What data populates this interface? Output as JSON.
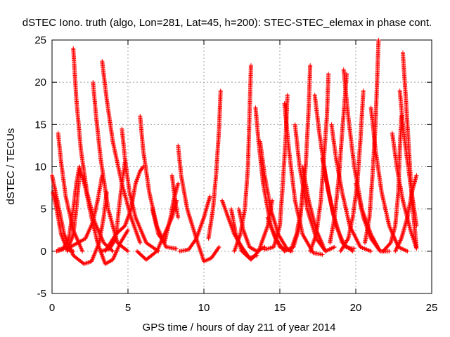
{
  "chart_data": {
    "type": "scatter",
    "title": "dSTEC Iono. truth (algo, Lon=281, Lat=45, h=200): STEC-STEC_elemax in phase cont.",
    "xlabel": "GPS time / hours of day 211 of year 2014",
    "ylabel": "dSTEC  / TECUs",
    "xlim": [
      0,
      25
    ],
    "ylim": [
      -5,
      25
    ],
    "xticks": [
      "0",
      "5",
      "10",
      "15",
      "20",
      "25"
    ],
    "yticks": [
      "-5",
      "0",
      "5",
      "10",
      "15",
      "20",
      "25"
    ],
    "grid": true,
    "marker": "+",
    "marker_color": "#ff0000",
    "series": [
      {
        "points": [
          [
            0,
            9
          ],
          [
            0.35,
            6
          ],
          [
            0.8,
            2
          ],
          [
            1.4,
            -0.5
          ],
          [
            2.1,
            -1.5
          ],
          [
            2.6,
            -1.2
          ],
          [
            3.1,
            1
          ],
          [
            3.4,
            4
          ],
          [
            3.6,
            7
          ]
        ]
      },
      {
        "points": [
          [
            0.05,
            7
          ],
          [
            0.3,
            5
          ],
          [
            0.6,
            2
          ],
          [
            1.0,
            0.2
          ],
          [
            1.4,
            0
          ]
        ]
      },
      {
        "points": [
          [
            0.4,
            14
          ],
          [
            0.6,
            10.5
          ],
          [
            0.9,
            6.5
          ],
          [
            1.4,
            2.5
          ],
          [
            2.0,
            0
          ]
        ]
      },
      {
        "points": [
          [
            0.3,
            0
          ],
          [
            0.7,
            0.2
          ],
          [
            1.1,
            1.5
          ],
          [
            1.4,
            5
          ],
          [
            1.6,
            8
          ],
          [
            1.8,
            10
          ]
        ]
      },
      {
        "points": [
          [
            1.0,
            0
          ],
          [
            1.4,
            2
          ],
          [
            1.6,
            5
          ],
          [
            1.75,
            8
          ],
          [
            1.8,
            10
          ]
        ]
      },
      {
        "points": [
          [
            1.4,
            24
          ],
          [
            1.6,
            18
          ],
          [
            1.9,
            12
          ],
          [
            2.3,
            7
          ],
          [
            2.8,
            3.5
          ],
          [
            3.4,
            1
          ],
          [
            4.0,
            0
          ]
        ]
      },
      {
        "points": [
          [
            0.4,
            0.2
          ],
          [
            1.2,
            0.5
          ],
          [
            2.2,
            1.5
          ],
          [
            2.7,
            3.5
          ],
          [
            3.0,
            6
          ],
          [
            3.3,
            9
          ]
        ]
      },
      {
        "points": [
          [
            2.7,
            20
          ],
          [
            2.9,
            16
          ],
          [
            3.2,
            11
          ],
          [
            3.7,
            5
          ],
          [
            4.3,
            1
          ],
          [
            5.0,
            0
          ]
        ]
      },
      {
        "points": [
          [
            3.3,
            22.5
          ],
          [
            3.6,
            18
          ],
          [
            4.0,
            13
          ],
          [
            4.6,
            8
          ],
          [
            5.2,
            4
          ],
          [
            5.8,
            1
          ]
        ]
      },
      {
        "points": [
          [
            1.8,
            10
          ],
          [
            2.2,
            7.5
          ],
          [
            2.6,
            4
          ],
          [
            3.0,
            1
          ],
          [
            3.5,
            -1.5
          ],
          [
            4.0,
            -1
          ],
          [
            4.5,
            1
          ],
          [
            5.0,
            2.5
          ]
        ]
      },
      {
        "points": [
          [
            3.2,
            0
          ],
          [
            3.8,
            0.3
          ],
          [
            4.2,
            1.5
          ],
          [
            4.4,
            5
          ],
          [
            4.6,
            8
          ],
          [
            4.8,
            10.5
          ]
        ]
      },
      {
        "points": [
          [
            4.6,
            14.5
          ],
          [
            4.8,
            11
          ],
          [
            5.1,
            7
          ],
          [
            5.5,
            4
          ],
          [
            6.2,
            1
          ],
          [
            7.0,
            0
          ]
        ]
      },
      {
        "points": [
          [
            3.5,
            0
          ],
          [
            4.2,
            2
          ],
          [
            4.8,
            3
          ],
          [
            5.2,
            5
          ],
          [
            5.5,
            8
          ],
          [
            5.8,
            9.5
          ],
          [
            6.0,
            10
          ]
        ]
      },
      {
        "points": [
          [
            5.8,
            16
          ],
          [
            6.0,
            12
          ],
          [
            6.4,
            7
          ],
          [
            6.9,
            3
          ],
          [
            7.5,
            0.5
          ],
          [
            8.2,
            0.3
          ]
        ]
      },
      {
        "points": [
          [
            5.6,
            0
          ],
          [
            6.2,
            -1
          ],
          [
            6.9,
            0
          ],
          [
            7.4,
            2
          ],
          [
            7.9,
            4
          ],
          [
            8.2,
            6
          ]
        ]
      },
      {
        "points": [
          [
            6.6,
            5
          ],
          [
            7.0,
            2
          ],
          [
            7.4,
            1
          ],
          [
            7.8,
            4
          ],
          [
            8.0,
            6
          ],
          [
            8.3,
            8
          ]
        ]
      },
      {
        "points": [
          [
            7.9,
            9
          ],
          [
            8.1,
            6
          ],
          [
            8.3,
            4
          ]
        ]
      },
      {
        "points": [
          [
            8.3,
            12.5
          ],
          [
            8.5,
            9
          ],
          [
            8.9,
            5
          ],
          [
            9.5,
            1.5
          ],
          [
            10.0,
            -1.2
          ],
          [
            10.5,
            -0.8
          ],
          [
            11.0,
            0.5
          ]
        ]
      },
      {
        "points": [
          [
            8.4,
            0
          ],
          [
            9.0,
            0.2
          ],
          [
            9.5,
            1.5
          ],
          [
            10.0,
            4
          ],
          [
            10.4,
            6.5
          ]
        ]
      },
      {
        "points": [
          [
            10.3,
            1.5
          ],
          [
            10.6,
            5
          ],
          [
            10.8,
            9
          ],
          [
            11.0,
            14.5
          ],
          [
            11.1,
            19
          ]
        ]
      },
      {
        "points": [
          [
            11.2,
            6
          ],
          [
            11.6,
            4
          ],
          [
            12.0,
            2
          ],
          [
            12.5,
            0.5
          ],
          [
            13.0,
            -0.8
          ],
          [
            13.5,
            -0.5
          ]
        ]
      },
      {
        "points": [
          [
            11.8,
            5
          ],
          [
            12.1,
            2
          ],
          [
            12.5,
            0
          ],
          [
            13.1,
            -1
          ],
          [
            13.6,
            0
          ],
          [
            14.2,
            3
          ],
          [
            14.5,
            6
          ]
        ]
      },
      {
        "points": [
          [
            12.3,
            5
          ],
          [
            12.6,
            2.5
          ],
          [
            13.0,
            0.5
          ],
          [
            13.5,
            0
          ],
          [
            14.0,
            0.5
          ]
        ]
      },
      {
        "points": [
          [
            12.0,
            0
          ],
          [
            12.4,
            2
          ],
          [
            12.7,
            5
          ],
          [
            12.9,
            10
          ],
          [
            13.0,
            16
          ],
          [
            13.1,
            22
          ]
        ]
      },
      {
        "points": [
          [
            13.4,
            17
          ],
          [
            13.6,
            13
          ],
          [
            13.9,
            8
          ],
          [
            14.4,
            3
          ],
          [
            15.0,
            0.5
          ],
          [
            15.8,
            0
          ]
        ]
      },
      {
        "points": [
          [
            13.7,
            13
          ],
          [
            14.0,
            9
          ],
          [
            14.4,
            5
          ],
          [
            14.9,
            2
          ],
          [
            15.5,
            0.2
          ]
        ]
      },
      {
        "points": [
          [
            14.0,
            0.2
          ],
          [
            14.6,
            0.5
          ],
          [
            15.0,
            3
          ],
          [
            15.2,
            8
          ],
          [
            15.4,
            14
          ],
          [
            15.5,
            18.5
          ]
        ]
      },
      {
        "points": [
          [
            15.3,
            17.5
          ],
          [
            15.6,
            12
          ],
          [
            16.0,
            6
          ],
          [
            16.5,
            2
          ],
          [
            17.2,
            -0.2
          ],
          [
            17.8,
            -0.4
          ]
        ]
      },
      {
        "points": [
          [
            14.2,
            4
          ],
          [
            14.7,
            1.5
          ],
          [
            15.3,
            0
          ],
          [
            15.9,
            0.5
          ],
          [
            16.3,
            3
          ],
          [
            16.5,
            7
          ],
          [
            16.6,
            10
          ]
        ]
      },
      {
        "points": [
          [
            15.7,
            0
          ],
          [
            16.1,
            2
          ],
          [
            16.4,
            5
          ],
          [
            16.7,
            10
          ],
          [
            16.9,
            17
          ],
          [
            17.0,
            22
          ]
        ]
      },
      {
        "points": [
          [
            16.0,
            15
          ],
          [
            16.3,
            10
          ],
          [
            16.8,
            5
          ],
          [
            17.4,
            1.5
          ],
          [
            18.0,
            0
          ]
        ]
      },
      {
        "points": [
          [
            16.5,
            10
          ],
          [
            16.9,
            6
          ],
          [
            17.4,
            2.5
          ],
          [
            18.0,
            0
          ],
          [
            18.6,
            0.5
          ]
        ]
      },
      {
        "points": [
          [
            17.0,
            0
          ],
          [
            17.4,
            2
          ],
          [
            17.7,
            6
          ],
          [
            17.9,
            11
          ],
          [
            18.1,
            16
          ],
          [
            18.2,
            21
          ]
        ]
      },
      {
        "points": [
          [
            17.3,
            18.5
          ],
          [
            17.6,
            14
          ],
          [
            18.0,
            9
          ],
          [
            18.5,
            4.5
          ],
          [
            19.1,
            1
          ],
          [
            19.8,
            0
          ]
        ]
      },
      {
        "points": [
          [
            17.8,
            11
          ],
          [
            18.2,
            7
          ],
          [
            18.7,
            3
          ],
          [
            19.3,
            0.5
          ],
          [
            19.9,
            0.3
          ]
        ]
      },
      {
        "points": [
          [
            18.3,
            1
          ],
          [
            18.6,
            4
          ],
          [
            18.9,
            9
          ],
          [
            19.1,
            14
          ],
          [
            19.3,
            18.5
          ],
          [
            19.4,
            21
          ]
        ]
      },
      {
        "points": [
          [
            18.4,
            15
          ],
          [
            18.7,
            11
          ],
          [
            19.1,
            7
          ],
          [
            19.6,
            3
          ],
          [
            20.3,
            0.5
          ],
          [
            21.0,
            0
          ]
        ]
      },
      {
        "points": [
          [
            19.0,
            0
          ],
          [
            19.5,
            1.5
          ],
          [
            19.8,
            4
          ],
          [
            20.1,
            8
          ],
          [
            20.3,
            13
          ],
          [
            20.5,
            19
          ]
        ]
      },
      {
        "points": [
          [
            19.2,
            21.5
          ],
          [
            19.5,
            16
          ],
          [
            19.9,
            10
          ],
          [
            20.4,
            5
          ],
          [
            21.0,
            2
          ],
          [
            21.6,
            0
          ]
        ]
      },
      {
        "points": [
          [
            20.0,
            8
          ],
          [
            20.5,
            4
          ],
          [
            21.0,
            1.5
          ],
          [
            21.6,
            0
          ],
          [
            22.2,
            0
          ]
        ]
      },
      {
        "points": [
          [
            20.6,
            1
          ],
          [
            20.9,
            4
          ],
          [
            21.1,
            9
          ],
          [
            21.3,
            15
          ],
          [
            21.4,
            20
          ],
          [
            21.5,
            25
          ]
        ]
      },
      {
        "points": [
          [
            21.0,
            17
          ],
          [
            21.3,
            12
          ],
          [
            21.7,
            7
          ],
          [
            22.2,
            3
          ],
          [
            22.8,
            0.5
          ],
          [
            23.4,
            0
          ]
        ]
      },
      {
        "points": [
          [
            21.8,
            0
          ],
          [
            22.3,
            1
          ],
          [
            22.6,
            3
          ],
          [
            22.8,
            7
          ],
          [
            22.9,
            12
          ],
          [
            23.0,
            16
          ]
        ]
      },
      {
        "points": [
          [
            22.4,
            14
          ],
          [
            22.7,
            10
          ],
          [
            23.1,
            6
          ],
          [
            23.6,
            2.5
          ],
          [
            24.0,
            0.3
          ]
        ]
      },
      {
        "points": [
          [
            22.9,
            19
          ],
          [
            23.1,
            15
          ],
          [
            23.3,
            12
          ],
          [
            23.6,
            8
          ],
          [
            24.0,
            3
          ]
        ]
      },
      {
        "points": [
          [
            22.6,
            0
          ],
          [
            23.0,
            1.5
          ],
          [
            23.4,
            4
          ],
          [
            23.7,
            7
          ],
          [
            24.0,
            9
          ]
        ]
      },
      {
        "points": [
          [
            23.1,
            23.5
          ],
          [
            23.3,
            18
          ],
          [
            23.5,
            12
          ],
          [
            23.7,
            6
          ],
          [
            24.0,
            0.5
          ]
        ]
      }
    ]
  }
}
